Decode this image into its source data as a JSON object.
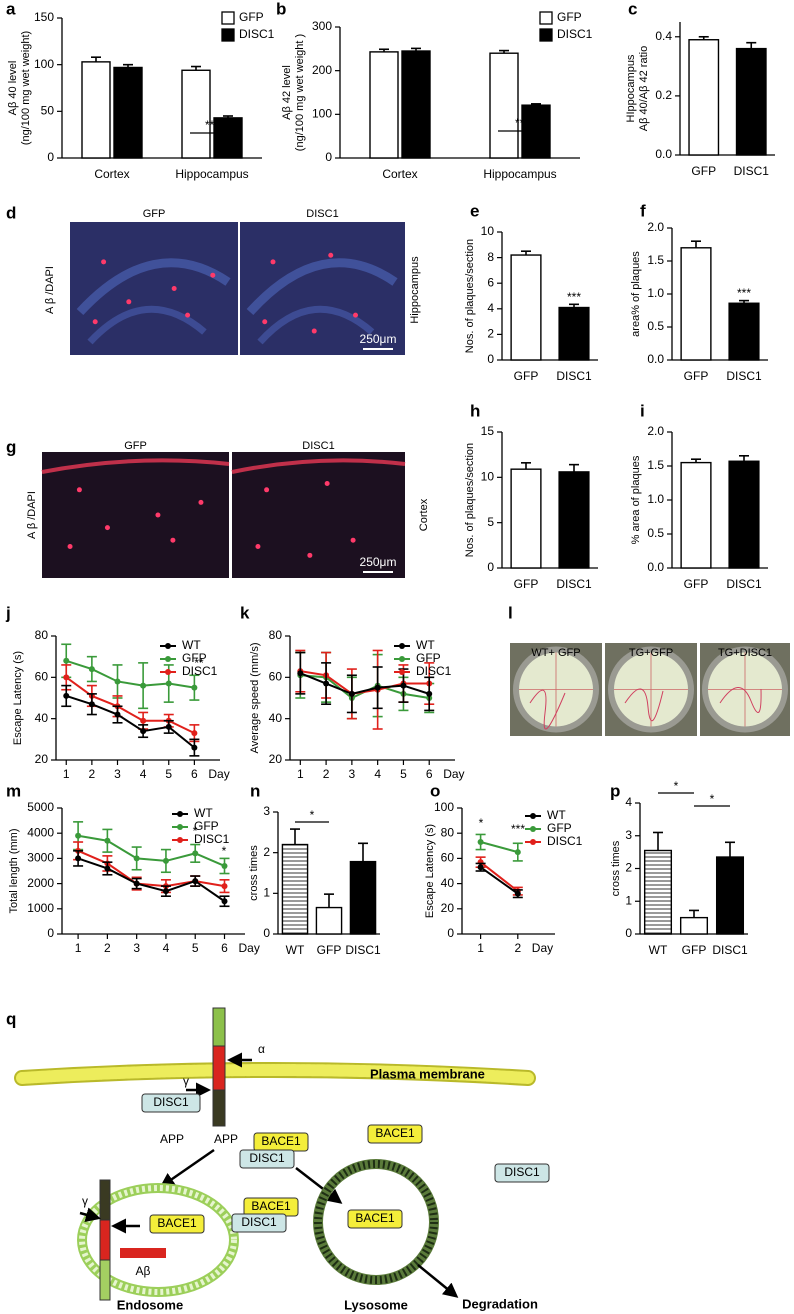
{
  "chart_data": [
    {
      "type": "bar",
      "label": "a",
      "ylabel": [
        "Aβ 40  level",
        "(ng/100 mg wet weight)"
      ],
      "categories": [
        "Cortex",
        "Hippocampus"
      ],
      "series": [
        {
          "name": "GFP",
          "color": "#ffffff",
          "values": [
            103,
            94
          ],
          "errors": [
            5,
            4
          ]
        },
        {
          "name": "DISC1",
          "color": "#000000",
          "values": [
            97,
            43
          ],
          "errors": [
            3,
            2
          ]
        }
      ],
      "ylim": [
        0,
        150
      ],
      "yticks": [
        0,
        50,
        100,
        150
      ],
      "annotations": [
        "***"
      ]
    },
    {
      "type": "bar",
      "label": "b",
      "ylabel": [
        "Aβ  42 level",
        "(ng/100 mg wet weight )"
      ],
      "categories": [
        "Cortex",
        "Hippocampus"
      ],
      "series": [
        {
          "name": "GFP",
          "color": "#ffffff",
          "values": [
            243,
            240
          ],
          "errors": [
            6,
            6
          ]
        },
        {
          "name": "DISC1",
          "color": "#000000",
          "values": [
            245,
            121
          ],
          "errors": [
            6,
            3
          ]
        }
      ],
      "ylim": [
        0,
        300
      ],
      "yticks": [
        0,
        100,
        200,
        300
      ],
      "annotations": [
        "***"
      ]
    },
    {
      "type": "bar",
      "label": "c",
      "ylabel": [
        "HIppocampus",
        "Aβ 40/Aβ 42 ratio"
      ],
      "categories": [
        "GFP",
        "DISC1"
      ],
      "values": [
        0.39,
        0.36
      ],
      "errors": [
        0.01,
        0.02
      ],
      "colors": [
        "#ffffff",
        "#000000"
      ],
      "ylim": [
        0,
        0.45
      ],
      "yticks": [
        {
          "value": 0,
          "label": "0.0"
        },
        0.2,
        0.4
      ]
    },
    {
      "type": "bar",
      "label": "e",
      "ylabel": [
        "Nos. of plaques/section"
      ],
      "categories": [
        "GFP",
        "DISC1"
      ],
      "values": [
        8.2,
        4.1
      ],
      "errors": [
        0.3,
        0.25
      ],
      "colors": [
        "#ffffff",
        "#000000"
      ],
      "ylim": [
        0,
        10
      ],
      "yticks": [
        0,
        2,
        4,
        6,
        8,
        10
      ],
      "annotations": [
        "***"
      ]
    },
    {
      "type": "bar",
      "label": "f",
      "ylabel": [
        "area% of plaques"
      ],
      "categories": [
        "GFP",
        "DISC1"
      ],
      "values": [
        1.7,
        0.86
      ],
      "errors": [
        0.1,
        0.04
      ],
      "colors": [
        "#ffffff",
        "#000000"
      ],
      "ylim": [
        0,
        2
      ],
      "yticks": [
        {
          "value": 0,
          "label": "0.0"
        },
        0.5,
        {
          "value": 1,
          "label": "1.0"
        },
        1.5,
        {
          "value": 2,
          "label": "2.0"
        }
      ],
      "annotations": [
        "***"
      ]
    },
    {
      "type": "bar",
      "label": "h",
      "ylabel": [
        "Nos. of plaques/section"
      ],
      "categories": [
        "GFP",
        "DISC1"
      ],
      "values": [
        10.9,
        10.6
      ],
      "errors": [
        0.7,
        0.8
      ],
      "colors": [
        "#ffffff",
        "#000000"
      ],
      "ylim": [
        0,
        15
      ],
      "yticks": [
        0,
        5,
        10,
        15
      ]
    },
    {
      "type": "bar",
      "label": "i",
      "ylabel": [
        "% area of plaques"
      ],
      "categories": [
        "GFP",
        "DISC1"
      ],
      "values": [
        1.55,
        1.57
      ],
      "errors": [
        0.05,
        0.08
      ],
      "colors": [
        "#ffffff",
        "#000000"
      ],
      "ylim": [
        0,
        2
      ],
      "yticks": [
        {
          "value": 0,
          "label": "0.0"
        },
        0.5,
        {
          "value": 1,
          "label": "1.0"
        },
        1.5,
        {
          "value": 2,
          "label": "2.0"
        }
      ]
    },
    {
      "type": "line",
      "label": "j",
      "ylabel": [
        "Escape Latency (s)"
      ],
      "xlabel": "Day",
      "x": [
        1,
        2,
        3,
        4,
        5,
        6
      ],
      "xlim": [
        0.6,
        7
      ],
      "xticks": [
        1,
        2,
        3,
        4,
        5,
        6
      ],
      "ylim": [
        20,
        80
      ],
      "yticks": [
        20,
        40,
        60,
        80
      ],
      "series": [
        {
          "name": "WT",
          "color": "#000000",
          "values": [
            51,
            47,
            42,
            34,
            36,
            26
          ],
          "errors": [
            5,
            5,
            4,
            3,
            3,
            4
          ]
        },
        {
          "name": "GFP",
          "color": "#3a9a3a",
          "values": [
            68,
            64,
            58,
            56,
            57,
            55
          ],
          "errors": [
            8,
            6,
            8,
            11,
            9,
            6
          ]
        },
        {
          "name": "DISC1",
          "color": "#e0201b",
          "values": [
            60,
            51,
            46,
            39,
            39,
            33
          ],
          "errors": [
            6,
            5,
            5,
            4,
            3,
            4
          ]
        }
      ],
      "annotations": [
        "**"
      ]
    },
    {
      "type": "line",
      "label": "k",
      "ylabel": [
        "Average speed (mm/s)"
      ],
      "xlabel": "Day",
      "x": [
        1,
        2,
        3,
        4,
        5,
        6
      ],
      "xlim": [
        0.6,
        7
      ],
      "xticks": [
        1,
        2,
        3,
        4,
        5,
        6
      ],
      "ylim": [
        20,
        80
      ],
      "yticks": [
        20,
        40,
        60,
        80
      ],
      "series": [
        {
          "name": "WT",
          "color": "#000000",
          "values": [
            62,
            57,
            52,
            55,
            56,
            52
          ],
          "errors": [
            10,
            10,
            9,
            10,
            8,
            8
          ]
        },
        {
          "name": "GFP",
          "color": "#3a9a3a",
          "values": [
            61,
            60,
            50,
            56,
            52,
            50
          ],
          "errors": [
            11,
            12,
            10,
            15,
            8,
            7
          ]
        },
        {
          "name": "DISC1",
          "color": "#e0201b",
          "values": [
            63,
            61,
            52,
            54,
            57,
            57
          ],
          "errors": [
            10,
            11,
            12,
            19,
            9,
            10
          ]
        }
      ]
    },
    {
      "type": "line",
      "label": "m",
      "ylabel": [
        "Total length (mm)"
      ],
      "xlabel": "Day",
      "x": [
        1,
        2,
        3,
        4,
        5,
        6
      ],
      "xlim": [
        0.45,
        6.7
      ],
      "xticks": [
        1,
        2,
        3,
        4,
        5,
        6
      ],
      "ylim": [
        0,
        5000
      ],
      "yticks": [
        0,
        1000,
        2000,
        3000,
        4000,
        5000
      ],
      "series": [
        {
          "name": "WT",
          "color": "#000000",
          "values": [
            3000,
            2600,
            2000,
            1700,
            2100,
            1300
          ],
          "errors": [
            300,
            250,
            200,
            200,
            200,
            200
          ]
        },
        {
          "name": "GFP",
          "color": "#3a9a3a",
          "values": [
            3900,
            3700,
            3000,
            2900,
            3200,
            2700
          ],
          "errors": [
            550,
            450,
            450,
            450,
            350,
            300
          ]
        },
        {
          "name": "DISC1",
          "color": "#e0201b",
          "values": [
            3300,
            2800,
            2000,
            1900,
            2100,
            1900
          ],
          "errors": [
            350,
            300,
            250,
            250,
            200,
            250
          ]
        }
      ],
      "annotations": [
        "*",
        "*"
      ]
    },
    {
      "type": "bar",
      "label": "n",
      "ylabel": [
        "cross times"
      ],
      "categories": [
        "WT",
        "GFP",
        "DISC1"
      ],
      "values": [
        2.2,
        0.65,
        1.78
      ],
      "errors": [
        0.38,
        0.33,
        0.45
      ],
      "colors": [
        "#ffffff",
        "#ffffff",
        "#000000"
      ],
      "hatch": [
        true,
        false,
        false
      ],
      "ylim": [
        0,
        3
      ],
      "yticks": [
        0,
        1,
        2,
        3
      ],
      "annotations": [
        "*"
      ]
    },
    {
      "type": "line",
      "label": "o",
      "ylabel": [
        "Escape Latency (s)"
      ],
      "xlabel": "Day",
      "x": [
        1,
        2
      ],
      "xlim": [
        0.5,
        3
      ],
      "xticks": [
        1,
        2
      ],
      "ylim": [
        0,
        100
      ],
      "yticks": [
        0,
        20,
        40,
        60,
        80,
        100
      ],
      "series": [
        {
          "name": "WT",
          "color": "#000000",
          "values": [
            53,
            32
          ],
          "errors": [
            3,
            3
          ]
        },
        {
          "name": "GFP",
          "color": "#3a9a3a",
          "values": [
            73,
            65
          ],
          "errors": [
            6,
            7
          ]
        },
        {
          "name": "DISC1",
          "color": "#e0201b",
          "values": [
            57,
            34
          ],
          "errors": [
            4,
            3
          ]
        }
      ],
      "annotations": [
        "*",
        "***"
      ]
    },
    {
      "type": "bar",
      "label": "p",
      "ylabel": [
        "cross times"
      ],
      "categories": [
        "WT",
        "GFP",
        "DISC1"
      ],
      "values": [
        2.55,
        0.5,
        2.35
      ],
      "errors": [
        0.55,
        0.22,
        0.45
      ],
      "colors": [
        "#ffffff",
        "#ffffff",
        "#000000"
      ],
      "hatch": [
        true,
        false,
        false
      ],
      "ylim": [
        0,
        4
      ],
      "yticks": [
        0,
        1,
        2,
        3,
        4
      ],
      "annotations": [
        "*",
        "*"
      ]
    }
  ],
  "micrographs": [
    {
      "label": "d",
      "columns": [
        "GFP",
        "DISC1"
      ],
      "stain": "A β /DAPI",
      "region": "Hippocampus",
      "scale_bar": "250μm"
    },
    {
      "label": "g",
      "columns": [
        "GFP",
        "DISC1"
      ],
      "stain": "A β /DAPI",
      "region": "Cortex",
      "scale_bar": "250μm"
    }
  ],
  "maze": {
    "label": "l",
    "groups": [
      "WT+ GFP",
      "TG+GFP",
      "TG+DISC1"
    ]
  },
  "diagram": {
    "label": "q",
    "membrane": "Plasma membrane",
    "alpha": "α",
    "gamma": [
      "γ",
      "γ"
    ],
    "app": [
      "APP",
      "APP"
    ],
    "disc1": [
      "DISC1",
      "DISC1",
      "DISC1",
      "DISC1"
    ],
    "bace1": [
      "BACE1",
      "BACE1",
      "BACE1",
      "BACE1",
      "BACE1"
    ],
    "abeta": "Aβ",
    "organelles": [
      "Endosome",
      "Lysosome"
    ],
    "degradation": "Degradation"
  }
}
